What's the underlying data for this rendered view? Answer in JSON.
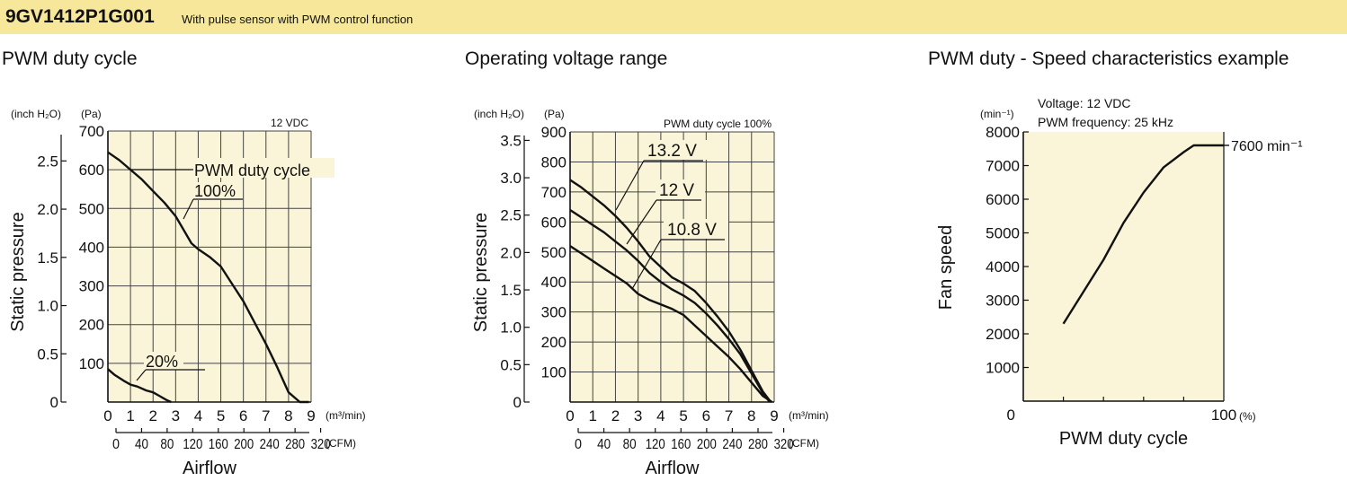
{
  "header": {
    "model": "9GV1412P1G001",
    "description": "With pulse sensor with PWM control function",
    "background": "#f6e79a"
  },
  "sections": {
    "pwm_title": "PWM duty cycle",
    "voltage_title": "Operating voltage range",
    "speed_title": "PWM duty - Speed characteristics example"
  },
  "chart_data": [
    {
      "type": "line",
      "title": "PWM duty cycle",
      "note": "12 VDC",
      "xlabel": "Airflow",
      "ylabel": "Static pressure",
      "x_unit": "(m³/min)",
      "x2_unit": "(CFM)",
      "y_unit_pa": "(Pa)",
      "y_unit_inch": "(inch H₂O)",
      "xlim": [
        0,
        9
      ],
      "ylim": [
        0,
        700
      ],
      "x_ticks": [
        "0",
        "1",
        "2",
        "3",
        "4",
        "5",
        "6",
        "7",
        "8",
        "9"
      ],
      "x2_ticks": [
        "0",
        "40",
        "80",
        "120",
        "160",
        "200",
        "240",
        "280",
        "320"
      ],
      "y_ticks": [
        "100",
        "200",
        "300",
        "400",
        "500",
        "600",
        "700"
      ],
      "y2_ticks": [
        "0",
        "0.5",
        "1.0",
        "1.5",
        "2.0",
        "2.5"
      ],
      "grid": true,
      "plot_bg": "#faf5d8",
      "annotations": [
        "PWM duty cycle",
        "100%",
        "20%"
      ],
      "series": [
        {
          "name": "100%",
          "x": [
            0,
            0.5,
            1,
            1.5,
            2,
            2.5,
            3,
            3.3,
            3.7,
            4,
            4.5,
            5,
            5.5,
            6,
            6.5,
            7,
            7.5,
            8,
            8.5,
            8.9
          ],
          "y": [
            645,
            625,
            600,
            575,
            545,
            515,
            480,
            450,
            410,
            395,
            375,
            350,
            305,
            260,
            205,
            150,
            90,
            25,
            0,
            0
          ]
        },
        {
          "name": "20%",
          "x": [
            0,
            0.3,
            0.7,
            1,
            1.3,
            1.7,
            2,
            2.3,
            2.6,
            2.8
          ],
          "y": [
            85,
            70,
            55,
            45,
            40,
            30,
            25,
            15,
            5,
            0
          ]
        }
      ]
    },
    {
      "type": "line",
      "title": "Operating voltage range",
      "note": "PWM duty cycle 100%",
      "xlabel": "Airflow",
      "ylabel": "Static pressure",
      "x_unit": "(m³/min)",
      "x2_unit": "(CFM)",
      "y_unit_pa": "(Pa)",
      "y_unit_inch": "(inch H₂O)",
      "xlim": [
        0,
        9
      ],
      "ylim": [
        0,
        900
      ],
      "x_ticks": [
        "0",
        "1",
        "2",
        "3",
        "4",
        "5",
        "6",
        "7",
        "8",
        "9"
      ],
      "x2_ticks": [
        "0",
        "40",
        "80",
        "120",
        "160",
        "200",
        "240",
        "280",
        "320"
      ],
      "y_ticks": [
        "100",
        "200",
        "300",
        "400",
        "500",
        "600",
        "700",
        "800",
        "900"
      ],
      "y2_ticks": [
        "0",
        "0.5",
        "1.0",
        "1.5",
        "2.0",
        "2.5",
        "3.0",
        "3.5"
      ],
      "grid": true,
      "plot_bg": "#faf5d8",
      "series": [
        {
          "name": "13.2 V",
          "x": [
            0,
            0.5,
            1,
            1.5,
            2,
            2.5,
            3,
            3.5,
            4,
            4.5,
            5,
            5.5,
            6,
            6.5,
            7,
            7.5,
            8,
            8.5,
            8.85
          ],
          "y": [
            740,
            715,
            685,
            655,
            620,
            580,
            535,
            485,
            450,
            415,
            395,
            370,
            330,
            285,
            235,
            175,
            105,
            35,
            0
          ]
        },
        {
          "name": "12 V",
          "x": [
            0,
            0.5,
            1,
            1.5,
            2,
            2.5,
            3,
            3.5,
            4,
            4.5,
            5,
            5.5,
            6,
            6.5,
            7,
            7.5,
            8,
            8.5,
            8.8
          ],
          "y": [
            640,
            615,
            590,
            565,
            535,
            505,
            470,
            430,
            400,
            375,
            355,
            330,
            295,
            255,
            210,
            160,
            95,
            30,
            0
          ]
        },
        {
          "name": "10.8 V",
          "x": [
            0,
            0.5,
            1,
            1.5,
            2,
            2.5,
            3,
            3.5,
            4,
            4.5,
            5,
            5.5,
            6,
            6.5,
            7,
            7.5,
            8,
            8.5,
            8.9
          ],
          "y": [
            520,
            495,
            470,
            445,
            420,
            395,
            360,
            340,
            325,
            310,
            290,
            255,
            220,
            185,
            150,
            110,
            65,
            20,
            0
          ]
        }
      ]
    },
    {
      "type": "line",
      "title": "PWM duty - Speed characteristics example",
      "notes": [
        "Voltage: 12 VDC",
        "PWM frequency: 25 kHz"
      ],
      "xlabel": "PWM duty cycle",
      "ylabel": "Fan speed",
      "x_unit": "(%)",
      "y_unit": "(min⁻¹)",
      "xlim": [
        0,
        100
      ],
      "ylim": [
        0,
        8000
      ],
      "x_ticks": [
        "0",
        "100"
      ],
      "y_ticks": [
        "1000",
        "2000",
        "3000",
        "4000",
        "5000",
        "6000",
        "7000",
        "8000"
      ],
      "grid": true,
      "plot_bg": "#faf5d8",
      "annotation": "7600 min⁻¹",
      "series": [
        {
          "name": "12 VDC",
          "x": [
            20,
            30,
            40,
            50,
            60,
            70,
            80,
            85,
            88,
            90,
            100
          ],
          "y": [
            2300,
            3250,
            4200,
            5300,
            6200,
            6950,
            7400,
            7600,
            7600,
            7600,
            7600
          ]
        }
      ]
    }
  ]
}
